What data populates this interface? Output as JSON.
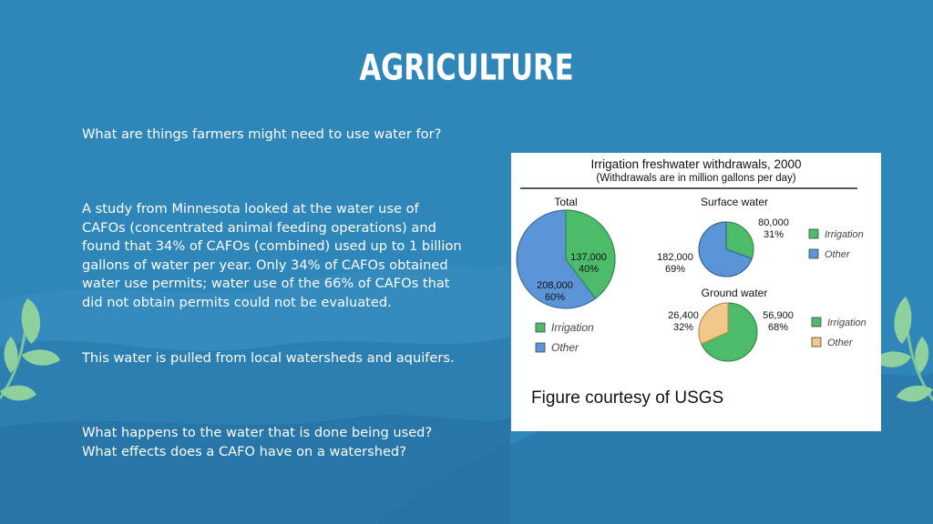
{
  "slide": {
    "title": "AGRICULTURE",
    "question1": "What are things farmers might need to use water for?",
    "study": "A study from Minnesota looked at the water use of CAFOs (concentrated animal feeding operations) and found that 34% of CAFOs (combined) used up to 1 billion gallons of water per year. Only 34% of CAFOs obtained water use permits; water use of the 66% of CAFOs that did not obtain permits could not be evaluated.",
    "source": "This water is pulled from local watersheds and aquifers.",
    "question2": "What happens to the water that is done being used?",
    "question3": "What effects does a CAFO have on a watershed?"
  },
  "figure": {
    "title": "Irrigation freshwater withdrawals, 2000",
    "subtitle": "(Withdrawals are in million gallons per day)",
    "caption": "Figure courtesy of USGS",
    "colors": {
      "irrigation": "#4cbb6a",
      "other": "#5b95d8",
      "other_ground": "#f2c78a"
    },
    "total": {
      "label": "Total",
      "irrigation_value": "137,000",
      "irrigation_pct": "40%",
      "other_value": "208,000",
      "other_pct": "60%",
      "legend_irrigation": "Irrigation",
      "legend_other": "Other"
    },
    "surface": {
      "label": "Surface water",
      "irrigation_value": "80,000",
      "irrigation_pct": "31%",
      "other_value": "182,000",
      "other_pct": "69%",
      "legend_irrigation": "Irrigation",
      "legend_other": "Other"
    },
    "ground": {
      "label": "Ground water",
      "irrigation_value": "56,900",
      "irrigation_pct": "68%",
      "other_value": "26,400",
      "other_pct": "32%",
      "legend_irrigation": "Irrigation",
      "legend_other": "Other"
    }
  },
  "chart_data": [
    {
      "type": "pie",
      "title": "Total",
      "categories": [
        "Irrigation",
        "Other"
      ],
      "values": [
        137000,
        208000
      ],
      "percents": [
        40,
        60
      ]
    },
    {
      "type": "pie",
      "title": "Surface water",
      "categories": [
        "Irrigation",
        "Other"
      ],
      "values": [
        80000,
        182000
      ],
      "percents": [
        31,
        69
      ]
    },
    {
      "type": "pie",
      "title": "Ground water",
      "categories": [
        "Irrigation",
        "Other"
      ],
      "values": [
        56900,
        26400
      ],
      "percents": [
        68,
        32
      ]
    }
  ]
}
